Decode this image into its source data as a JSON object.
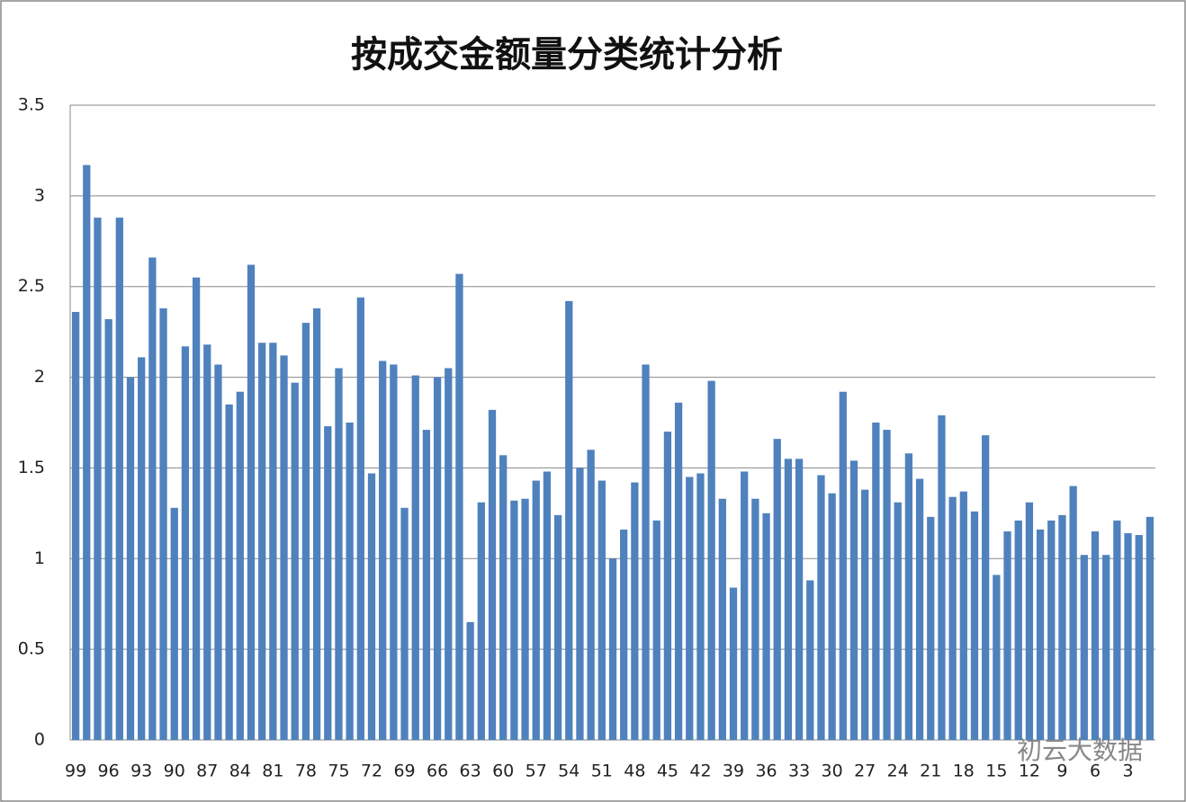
{
  "chart_data": {
    "type": "bar",
    "title": "按成交金额量分类统计分析",
    "categories": [
      "99",
      null,
      null,
      "96",
      null,
      null,
      "93",
      null,
      null,
      "90",
      null,
      null,
      "87",
      null,
      null,
      "84",
      null,
      null,
      "81",
      null,
      null,
      "78",
      null,
      null,
      "75",
      null,
      null,
      "72",
      null,
      null,
      "69",
      null,
      null,
      "66",
      null,
      null,
      "63",
      null,
      null,
      "60",
      null,
      null,
      "57",
      null,
      null,
      "54",
      null,
      null,
      "51",
      null,
      null,
      "48",
      null,
      null,
      "45",
      null,
      null,
      "42",
      null,
      null,
      "39",
      null,
      null,
      "36",
      null,
      null,
      "33",
      null,
      null,
      "30",
      null,
      null,
      "27",
      null,
      null,
      "24",
      null,
      null,
      "21",
      null,
      null,
      "18",
      null,
      null,
      "15",
      null,
      null,
      "12",
      null,
      null,
      "9",
      null,
      null,
      "6",
      null,
      null,
      "3",
      null,
      null
    ],
    "values": [
      2.36,
      3.17,
      2.88,
      2.32,
      2.88,
      2.0,
      2.11,
      2.66,
      2.38,
      1.28,
      2.17,
      2.55,
      2.18,
      2.07,
      1.85,
      1.92,
      2.62,
      2.19,
      2.19,
      2.12,
      1.97,
      2.3,
      2.38,
      1.73,
      2.05,
      1.75,
      2.44,
      1.47,
      2.09,
      2.07,
      1.28,
      2.01,
      1.71,
      2.0,
      2.05,
      2.57,
      0.65,
      1.31,
      1.82,
      1.57,
      1.32,
      1.33,
      1.43,
      1.48,
      1.24,
      2.42,
      1.5,
      1.6,
      1.43,
      1.0,
      1.16,
      1.42,
      2.07,
      1.21,
      1.7,
      1.86,
      1.45,
      1.47,
      1.98,
      1.33,
      0.84,
      1.48,
      1.33,
      1.25,
      1.66,
      1.55,
      1.55,
      0.88,
      1.46,
      1.36,
      1.92,
      1.54,
      1.38,
      1.75,
      1.71,
      1.31,
      1.58,
      1.44,
      1.23,
      1.79,
      1.34,
      1.37,
      1.26,
      1.68,
      0.91,
      1.15,
      1.21,
      1.31,
      1.16,
      1.21,
      1.24,
      1.4,
      1.02,
      1.15,
      1.02,
      1.21,
      1.14,
      1.13,
      1.23
    ],
    "color": "#4f81bd",
    "ylim": [
      0,
      3.5
    ],
    "yticks": [
      0,
      0.5,
      1,
      1.5,
      2,
      2.5,
      3,
      3.5
    ],
    "grid": true
  },
  "watermark": "初云大数据"
}
